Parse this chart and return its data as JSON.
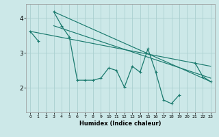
{
  "xlabel": "Humidex (Indice chaleur)",
  "xlim": [
    -0.5,
    23.5
  ],
  "ylim": [
    1.3,
    4.4
  ],
  "yticks": [
    2,
    3,
    4
  ],
  "xticks": [
    0,
    1,
    2,
    3,
    4,
    5,
    6,
    7,
    8,
    9,
    10,
    11,
    12,
    13,
    14,
    15,
    16,
    17,
    18,
    19,
    20,
    21,
    22,
    23
  ],
  "bg_color": "#cce8e8",
  "grid_color": "#aad0d0",
  "line_color": "#1a7a6e",
  "series1_x": [
    0,
    1,
    2,
    3,
    4,
    5,
    6,
    7,
    8,
    9,
    10,
    11,
    12,
    13,
    14,
    15,
    16,
    17,
    18,
    19,
    20,
    21,
    22,
    23
  ],
  "series1_y": [
    3.62,
    3.35,
    null,
    4.18,
    3.78,
    3.45,
    2.22,
    2.22,
    2.22,
    2.28,
    2.57,
    2.5,
    2.02,
    2.62,
    2.45,
    3.12,
    2.45,
    1.65,
    1.55,
    1.8,
    null,
    2.72,
    2.32,
    2.18
  ],
  "trend1_x": [
    3,
    23
  ],
  "trend1_y": [
    4.18,
    2.18
  ],
  "trend2_x": [
    3,
    23
  ],
  "trend2_y": [
    3.78,
    2.28
  ],
  "trend3_x": [
    0,
    23
  ],
  "trend3_y": [
    3.62,
    2.62
  ]
}
